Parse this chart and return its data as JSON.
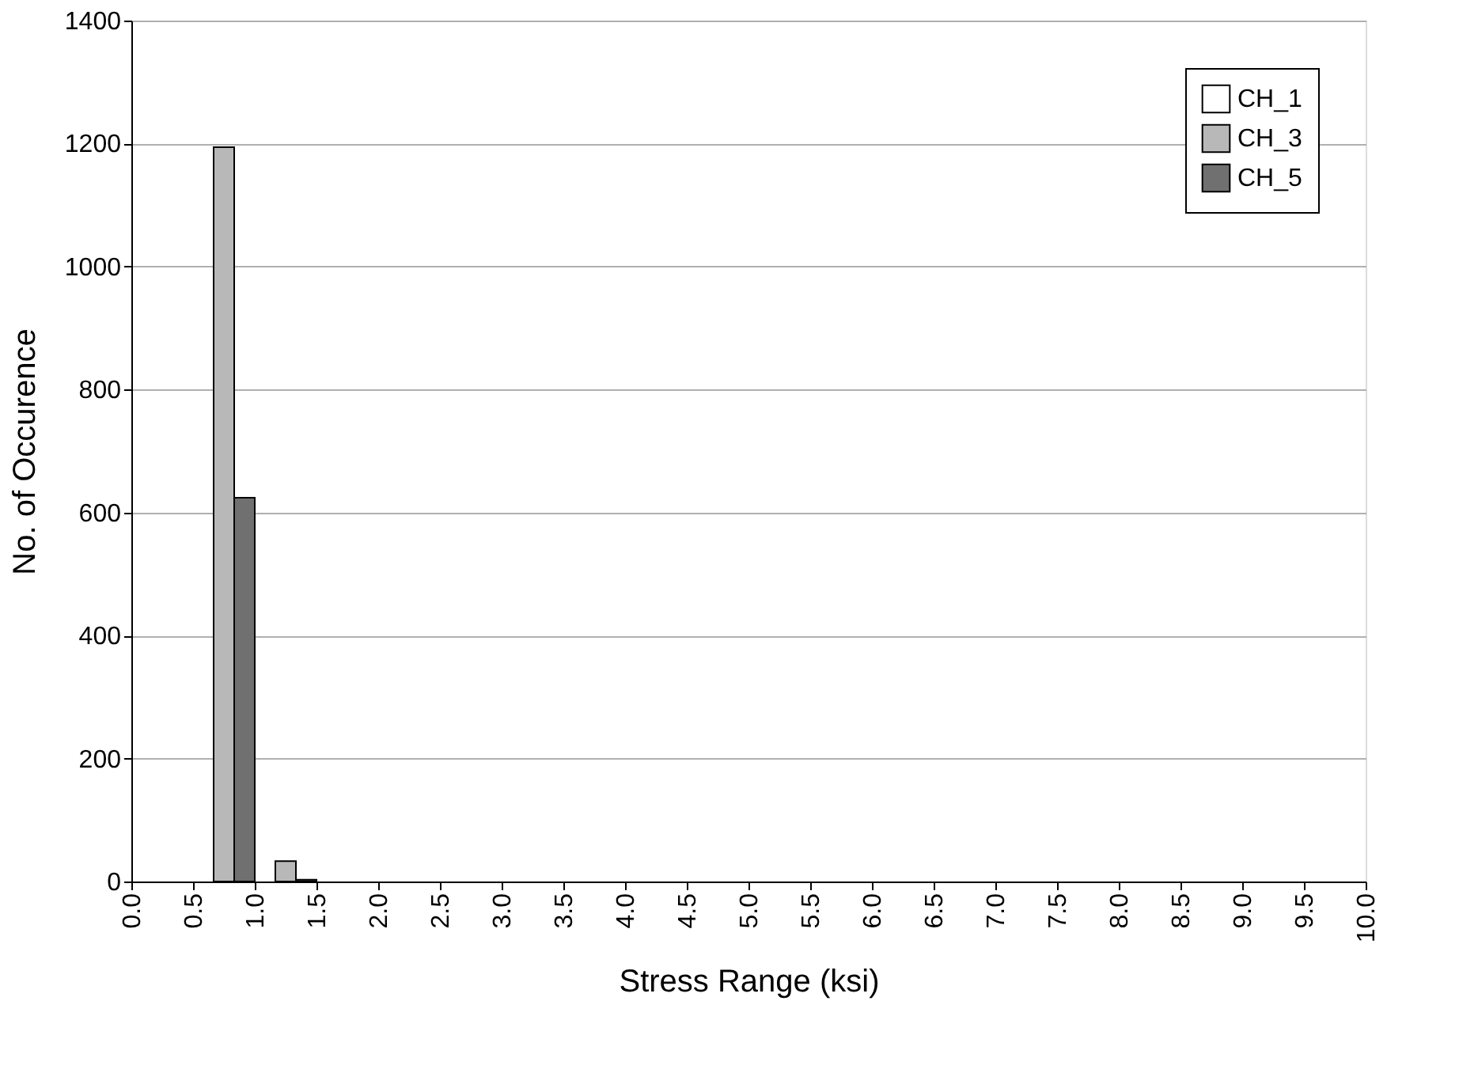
{
  "chart_data": {
    "type": "bar",
    "xlabel": "Stress Range (ksi)",
    "ylabel": "No. of Occurence",
    "x": [
      0.75,
      1.25
    ],
    "series": [
      {
        "name": "CH_1",
        "color": "#ffffff",
        "values": [
          null,
          null
        ]
      },
      {
        "name": "CH_3",
        "color": "#b8b8b8",
        "values": [
          1194,
          33
        ]
      },
      {
        "name": "CH_5",
        "color": "#707070",
        "values": [
          624,
          3
        ]
      }
    ],
    "xlim": [
      0,
      10
    ],
    "xticks": [
      {
        "value": 0,
        "label": "0.0"
      },
      0.5,
      {
        "value": 1,
        "label": "1.0"
      },
      1.5,
      {
        "value": 2,
        "label": "2.0"
      },
      2.5,
      {
        "value": 3,
        "label": "3.0"
      },
      3.5,
      {
        "value": 4,
        "label": "4.0"
      },
      4.5,
      {
        "value": 5,
        "label": "5.0"
      },
      5.5,
      {
        "value": 6,
        "label": "6.0"
      },
      6.5,
      {
        "value": 7,
        "label": "7.0"
      },
      7.5,
      {
        "value": 8,
        "label": "8.0"
      },
      8.5,
      {
        "value": 9,
        "label": "9.0"
      },
      9.5,
      {
        "value": 10,
        "label": "10.0"
      }
    ],
    "ylim": [
      0,
      1400
    ],
    "yticks": [
      0,
      200,
      400,
      600,
      800,
      1000,
      1200,
      1400
    ],
    "grid": "y",
    "legend": "top right"
  }
}
